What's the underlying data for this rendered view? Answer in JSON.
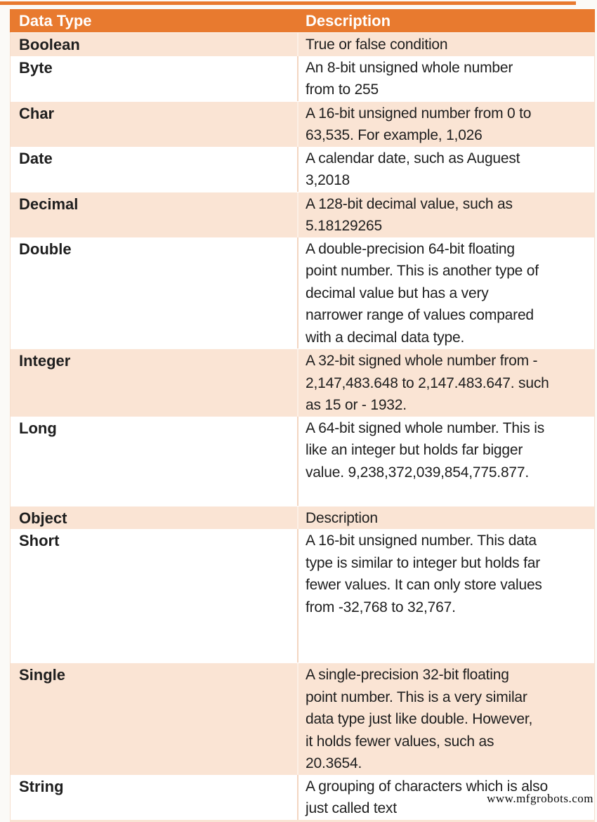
{
  "colors": {
    "header_bg": "#E87A2F",
    "row_shaded_bg": "#FAE4D4",
    "row_plain_bg": "#FFFFFF",
    "header_text": "#FFFFFF",
    "body_text": "#1E1E1E"
  },
  "header": {
    "data_type_label": "Data Type",
    "description_label": "Description"
  },
  "rows": [
    {
      "name": "Boolean",
      "description": "True or false condition"
    },
    {
      "name": "Byte",
      "description": "An 8-bit unsigned whole number\nfrom to 255"
    },
    {
      "name": "Char",
      "description": "A 16-bit unsigned number from 0 to\n63,535. For example, 1,026"
    },
    {
      "name": "Date",
      "description": "A calendar date, such as Auguest\n3,2018"
    },
    {
      "name": "Decimal",
      "description": "A 128-bit decimal value, such as\n5.18129265"
    },
    {
      "name": "Double",
      "description": "A double-precision 64-bit floating\npoint number. This is another type of\ndecimal value but has a very\nnarrower range of values compared\nwith a decimal data type."
    },
    {
      "name": "Integer",
      "description": "A 32-bit signed whole number from -\n2,147,483.648 to 2,147.483.647. such\nas 15 or - 1932."
    },
    {
      "name": "Long",
      "description": "A 64-bit signed whole number. This is\nlike an integer but holds far bigger\nvalue. 9,238,372,039,854,775.877."
    },
    {
      "name": "Object",
      "description": "Description"
    },
    {
      "name": "Short",
      "description": "A 16-bit unsigned number. This data\ntype is similar to integer but holds far\nfewer values. It can only store values\nfrom -32,768 to 32,767."
    },
    {
      "name": "Single",
      "description": "A single-precision 32-bit floating\npoint number. This is a very similar\ndata type just like double. However,\nit holds fewer values, such as\n20.3654."
    },
    {
      "name": "String",
      "description": "A grouping of characters which is also\njust called text"
    }
  ],
  "watermark": "www.mfgrobots.com"
}
